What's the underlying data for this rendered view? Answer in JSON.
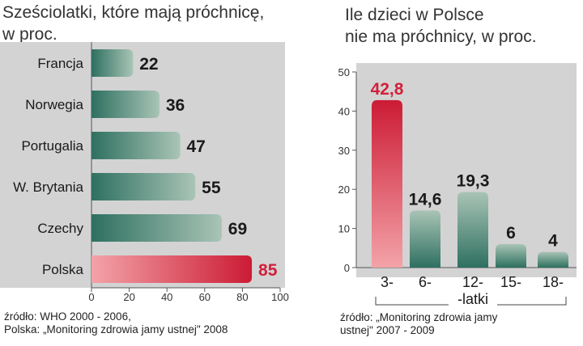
{
  "chart_data": [
    {
      "type": "bar",
      "orientation": "horizontal",
      "title": "Sześciolatki, które mają próchnicę,\nw proc.",
      "categories": [
        "Francja",
        "Norwegia",
        "Portugalia",
        "W. Brytania",
        "Czechy",
        "Polska"
      ],
      "values": [
        22,
        36,
        47,
        55,
        69,
        85
      ],
      "value_labels": [
        "22",
        "36",
        "47",
        "55",
        "69",
        "85"
      ],
      "highlight": "Polska",
      "xlim": [
        0,
        100
      ],
      "xticks": [
        "0",
        "20",
        "40",
        "60",
        "80",
        "100"
      ],
      "source": "źródło: WHO 2000 - 2006,\nPolska: „Monitoring zdrowia jamy ustnej\" 2008"
    },
    {
      "type": "bar",
      "orientation": "vertical",
      "title": "Ile dzieci w Polsce\nnie ma próchnicy, w proc.",
      "categories": [
        "3-",
        "6-",
        "12-",
        "15-",
        "18-"
      ],
      "category_note": "-latki",
      "values": [
        42.8,
        14.6,
        19.3,
        6,
        4
      ],
      "value_labels": [
        "42,8",
        "14,6",
        "19,3",
        "6",
        "4"
      ],
      "highlight": "3-",
      "ylim": [
        0,
        50
      ],
      "yticks": [
        "0",
        "10",
        "20",
        "30",
        "40",
        "50"
      ],
      "source": "źródło: „Monitoring zdrowia jamy\nustnej\" 2007 - 2009"
    }
  ],
  "colors": {
    "panel_bg": "#d3d3d3",
    "bar_green_dark": "#2e7060",
    "bar_green_light": "#a9c4b6",
    "bar_red_dark": "#cc1b35",
    "bar_red_light": "#f3a3a8",
    "highlight_text": "#d2203a"
  }
}
